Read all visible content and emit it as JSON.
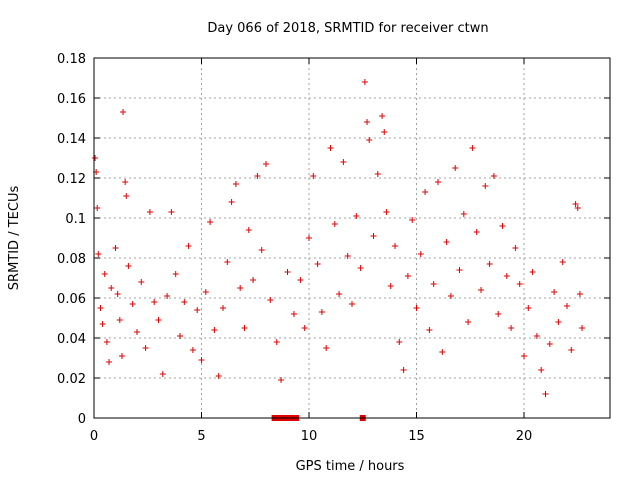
{
  "chart_data": {
    "type": "scatter",
    "title": "Day 066 of 2018, SRMTID for receiver ctwn",
    "xlabel": "GPS time / hours",
    "ylabel": "SRMTID / TECUs",
    "xlim": [
      0,
      24
    ],
    "ylim": [
      0,
      0.18
    ],
    "xticks": [
      0,
      5,
      10,
      15,
      20
    ],
    "xtick_labels": [
      "0",
      "5",
      "10",
      "15",
      "20"
    ],
    "yticks": [
      0,
      0.02,
      0.04,
      0.06,
      0.08,
      0.1,
      0.12,
      0.14,
      0.16,
      0.18
    ],
    "ytick_labels": [
      "0",
      "0.02",
      "0.04",
      "0.06",
      "0.08",
      "0.1",
      "0.12",
      "0.14",
      "0.16",
      "0.18"
    ],
    "grid": true,
    "marker": "+",
    "color": "#e00000",
    "series": [
      {
        "name": "SRMTID",
        "points": [
          [
            0.05,
            0.13
          ],
          [
            0.1,
            0.123
          ],
          [
            0.15,
            0.105
          ],
          [
            0.2,
            0.082
          ],
          [
            0.3,
            0.055
          ],
          [
            0.4,
            0.047
          ],
          [
            0.5,
            0.072
          ],
          [
            0.6,
            0.038
          ],
          [
            0.7,
            0.028
          ],
          [
            0.8,
            0.065
          ],
          [
            1.0,
            0.085
          ],
          [
            1.1,
            0.062
          ],
          [
            1.2,
            0.049
          ],
          [
            1.3,
            0.031
          ],
          [
            1.35,
            0.153
          ],
          [
            1.45,
            0.118
          ],
          [
            1.5,
            0.111
          ],
          [
            1.6,
            0.076
          ],
          [
            1.8,
            0.057
          ],
          [
            2.0,
            0.043
          ],
          [
            2.2,
            0.068
          ],
          [
            2.4,
            0.035
          ],
          [
            2.6,
            0.103
          ],
          [
            2.8,
            0.058
          ],
          [
            3.0,
            0.049
          ],
          [
            3.2,
            0.022
          ],
          [
            3.4,
            0.061
          ],
          [
            3.6,
            0.103
          ],
          [
            3.8,
            0.072
          ],
          [
            4.0,
            0.041
          ],
          [
            4.2,
            0.058
          ],
          [
            4.4,
            0.086
          ],
          [
            4.6,
            0.034
          ],
          [
            4.8,
            0.054
          ],
          [
            5.0,
            0.029
          ],
          [
            5.2,
            0.063
          ],
          [
            5.4,
            0.098
          ],
          [
            5.6,
            0.044
          ],
          [
            5.8,
            0.021
          ],
          [
            6.0,
            0.055
          ],
          [
            6.2,
            0.078
          ],
          [
            6.4,
            0.108
          ],
          [
            6.6,
            0.117
          ],
          [
            6.8,
            0.065
          ],
          [
            7.0,
            0.045
          ],
          [
            7.2,
            0.094
          ],
          [
            7.4,
            0.069
          ],
          [
            7.6,
            0.121
          ],
          [
            7.8,
            0.084
          ],
          [
            8.0,
            0.127
          ],
          [
            8.2,
            0.059
          ],
          [
            8.5,
            0.038
          ],
          [
            8.7,
            0.019
          ],
          [
            9.0,
            0.073
          ],
          [
            9.3,
            0.052
          ],
          [
            9.6,
            0.069
          ],
          [
            9.8,
            0.045
          ],
          [
            10.0,
            0.09
          ],
          [
            10.2,
            0.121
          ],
          [
            10.4,
            0.077
          ],
          [
            10.6,
            0.053
          ],
          [
            10.8,
            0.035
          ],
          [
            11.0,
            0.135
          ],
          [
            11.2,
            0.097
          ],
          [
            11.4,
            0.062
          ],
          [
            11.6,
            0.128
          ],
          [
            11.8,
            0.081
          ],
          [
            12.0,
            0.057
          ],
          [
            12.2,
            0.101
          ],
          [
            12.4,
            0.075
          ],
          [
            12.6,
            0.168
          ],
          [
            12.7,
            0.148
          ],
          [
            12.8,
            0.139
          ],
          [
            13.0,
            0.091
          ],
          [
            13.2,
            0.122
          ],
          [
            13.4,
            0.151
          ],
          [
            13.5,
            0.143
          ],
          [
            13.6,
            0.103
          ],
          [
            13.8,
            0.066
          ],
          [
            14.0,
            0.086
          ],
          [
            14.2,
            0.038
          ],
          [
            14.4,
            0.024
          ],
          [
            14.6,
            0.071
          ],
          [
            14.8,
            0.099
          ],
          [
            15.0,
            0.055
          ],
          [
            15.2,
            0.082
          ],
          [
            15.4,
            0.113
          ],
          [
            15.6,
            0.044
          ],
          [
            15.8,
            0.067
          ],
          [
            16.0,
            0.118
          ],
          [
            16.2,
            0.033
          ],
          [
            16.4,
            0.088
          ],
          [
            16.6,
            0.061
          ],
          [
            16.8,
            0.125
          ],
          [
            17.0,
            0.074
          ],
          [
            17.2,
            0.102
          ],
          [
            17.4,
            0.048
          ],
          [
            17.6,
            0.135
          ],
          [
            17.8,
            0.093
          ],
          [
            18.0,
            0.064
          ],
          [
            18.2,
            0.116
          ],
          [
            18.4,
            0.077
          ],
          [
            18.6,
            0.121
          ],
          [
            18.8,
            0.052
          ],
          [
            19.0,
            0.096
          ],
          [
            19.2,
            0.071
          ],
          [
            19.4,
            0.045
          ],
          [
            19.6,
            0.085
          ],
          [
            19.8,
            0.067
          ],
          [
            20.0,
            0.031
          ],
          [
            20.2,
            0.055
          ],
          [
            20.4,
            0.073
          ],
          [
            20.6,
            0.041
          ],
          [
            20.8,
            0.024
          ],
          [
            21.0,
            0.012
          ],
          [
            21.2,
            0.037
          ],
          [
            21.4,
            0.063
          ],
          [
            21.6,
            0.048
          ],
          [
            21.8,
            0.078
          ],
          [
            22.0,
            0.056
          ],
          [
            22.2,
            0.034
          ],
          [
            22.4,
            0.107
          ],
          [
            22.5,
            0.105
          ],
          [
            22.6,
            0.062
          ],
          [
            22.7,
            0.045
          ],
          [
            8.4,
            0
          ],
          [
            8.6,
            0
          ],
          [
            8.8,
            0
          ],
          [
            9.0,
            0
          ],
          [
            9.2,
            0
          ],
          [
            9.4,
            0
          ],
          [
            12.5,
            0
          ]
        ]
      }
    ]
  }
}
